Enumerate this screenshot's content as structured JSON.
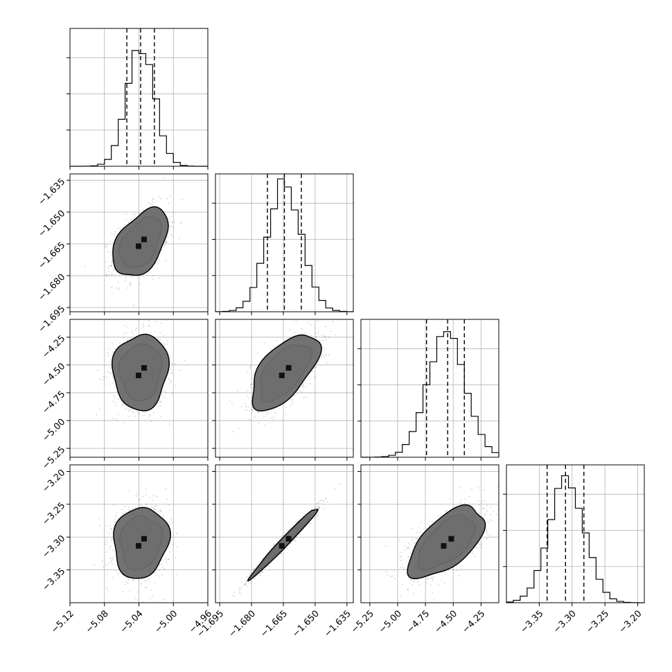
{
  "chart_data": {
    "type": "corner",
    "grid": true,
    "legend": "none",
    "parameters": [
      {
        "ticks": [
          -5.12,
          -5.08,
          -5.04,
          -5.0,
          -4.96
        ],
        "tick_labels": [
          "−5.12",
          "−5.08",
          "−5.04",
          "−5.00",
          "−4.96"
        ],
        "range": [
          -5.12,
          -4.96
        ],
        "quantiles": [
          -5.054,
          -5.038,
          -5.022
        ],
        "mean": -5.038,
        "sd": 0.016,
        "hist_peak": 0.83
      },
      {
        "ticks": [
          -1.695,
          -1.68,
          -1.665,
          -1.65,
          -1.635
        ],
        "tick_labels": [
          "−1.695",
          "−1.680",
          "−1.665",
          "−1.650",
          "−1.635"
        ],
        "range": [
          -1.697,
          -1.632
        ],
        "quantiles": [
          -1.6725,
          -1.6645,
          -1.6565
        ],
        "mean": -1.6645,
        "sd": 0.008,
        "hist_peak": 0.9
      },
      {
        "ticks": [
          -5.25,
          -5.0,
          -4.75,
          -4.5,
          -4.25
        ],
        "tick_labels": [
          "−5.25",
          "−5.00",
          "−4.75",
          "−4.50",
          "−4.25"
        ],
        "range": [
          -5.33,
          -4.09
        ],
        "quantiles": [
          -4.74,
          -4.55,
          -4.4
        ],
        "mean": -4.56,
        "sd": 0.17,
        "hist_peak": 0.86
      },
      {
        "ticks": [
          -3.35,
          -3.3,
          -3.25,
          -3.2
        ],
        "tick_labels": [
          "−3.35",
          "−3.30",
          "−3.25",
          "−3.20"
        ],
        "range": [
          -3.4,
          -3.19
        ],
        "quantiles": [
          -3.338,
          -3.31,
          -3.282
        ],
        "mean": -3.308,
        "sd": 0.027,
        "hist_peak": 0.86
      }
    ],
    "correlations": {
      "1_0": 0.45,
      "2_0": 0.05,
      "2_1": 0.6,
      "3_0": 0.1,
      "3_1": 0.985,
      "3_2": 0.6
    },
    "contour_levels": [
      0.5,
      1.0,
      1.5,
      2.0
    ],
    "colors": {
      "line": "#000000",
      "grid": "#b0b0b0",
      "points": "#777777"
    }
  }
}
